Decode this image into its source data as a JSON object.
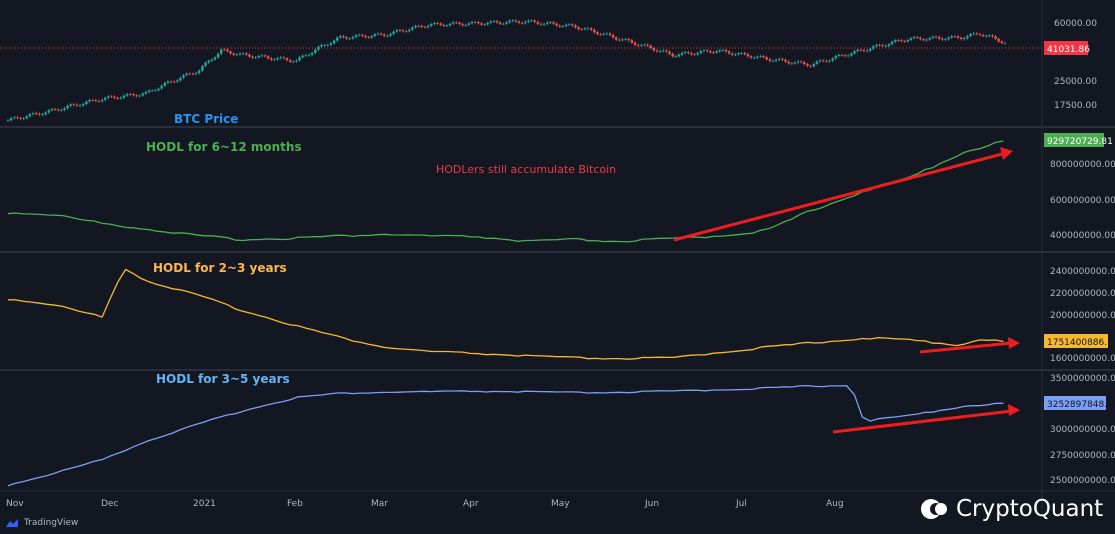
{
  "brand": {
    "name": "CryptoQuant",
    "platform": "TradingView"
  },
  "time_axis": [
    "Nov",
    "Dec",
    "2021",
    "Feb",
    "Mar",
    "Apr",
    "May",
    "Jun",
    "Jul",
    "Aug"
  ],
  "chart_data": [
    {
      "type": "candlestick",
      "title": "BTC Price",
      "title_color": "#2196f3",
      "y_ticks": [
        "60000.00",
        "41031.86",
        "25000.00",
        "17500.00"
      ],
      "last_value_label": "41031.86",
      "last_value": 41031.86,
      "scale": "log",
      "x": [
        "2020-11-01",
        "2020-11-15",
        "2020-12-01",
        "2020-12-15",
        "2021-01-01",
        "2021-01-08",
        "2021-01-15",
        "2021-02-01",
        "2021-02-15",
        "2021-03-01",
        "2021-03-15",
        "2021-04-01",
        "2021-04-15",
        "2021-05-01",
        "2021-05-15",
        "2021-06-01",
        "2021-06-15",
        "2021-07-01",
        "2021-07-15",
        "2021-08-01",
        "2021-08-15",
        "2021-09-01",
        "2021-09-07",
        "2021-09-15"
      ],
      "values": [
        13700,
        15800,
        18900,
        20500,
        29000,
        39000,
        36500,
        33500,
        47500,
        49500,
        57500,
        59000,
        60500,
        56000,
        46500,
        36500,
        39000,
        34500,
        31500,
        39500,
        46500,
        47500,
        50500,
        44000
      ]
    },
    {
      "type": "line",
      "title": "HODL for 6~12 months",
      "title_color": "#4caf50",
      "color": "#4caf50",
      "annotation": "HODLers still accumulate Bitcoin",
      "annotation_color": "#f23645",
      "y_ticks": [
        "929720729.81",
        "800000000.00",
        "600000000.00",
        "400000000.00"
      ],
      "last_value_label": "929720729.81",
      "last_value": 929720729.81,
      "x": [
        "2020-11-01",
        "2020-11-15",
        "2020-12-01",
        "2020-12-15",
        "2021-01-01",
        "2021-01-15",
        "2021-02-01",
        "2021-02-15",
        "2021-03-01",
        "2021-03-15",
        "2021-04-01",
        "2021-04-15",
        "2021-05-01",
        "2021-05-15",
        "2021-06-01",
        "2021-06-15",
        "2021-07-01",
        "2021-07-15",
        "2021-08-01",
        "2021-08-15",
        "2021-09-01",
        "2021-09-15"
      ],
      "values": [
        530000000,
        520000000,
        470000000,
        440000000,
        400000000,
        380000000,
        390000000,
        400000000,
        410000000,
        400000000,
        395000000,
        370000000,
        380000000,
        370000000,
        385000000,
        400000000,
        430000000,
        540000000,
        650000000,
        720000000,
        860000000,
        929720729.81
      ]
    },
    {
      "type": "line",
      "title": "HODL for 2~3 years",
      "title_color": "#ffb74d",
      "color": "#f5b82e",
      "y_ticks": [
        "2400000000.00",
        "2200000000.00",
        "2000000000.00",
        "1751400886.12",
        "1600000000.00"
      ],
      "last_value_label": "1751400886.12",
      "last_value": 1751400886.12,
      "x": [
        "2020-11-01",
        "2020-11-15",
        "2020-12-01",
        "2020-12-08",
        "2020-12-15",
        "2021-01-01",
        "2021-01-15",
        "2021-02-01",
        "2021-02-15",
        "2021-03-01",
        "2021-03-15",
        "2021-04-01",
        "2021-04-15",
        "2021-05-01",
        "2021-05-15",
        "2021-06-01",
        "2021-06-15",
        "2021-07-01",
        "2021-07-15",
        "2021-08-01",
        "2021-08-15",
        "2021-09-01",
        "2021-09-07",
        "2021-09-15"
      ],
      "values": [
        2150000000,
        2100000000,
        1980000000,
        2440000000,
        2320000000,
        2180000000,
        2040000000,
        1900000000,
        1790000000,
        1700000000,
        1660000000,
        1640000000,
        1620000000,
        1600000000,
        1595000000,
        1600000000,
        1650000000,
        1700000000,
        1740000000,
        1785000000,
        1770000000,
        1720000000,
        1775000000,
        1751400886.12
      ]
    },
    {
      "type": "line",
      "title": "HODL for 3~5 years",
      "title_color": "#64b5f6",
      "color": "#7b9ff2",
      "y_ticks": [
        "3500000000.00",
        "3252897848.11",
        "3000000000.00",
        "2750000000.00",
        "2500000000.00"
      ],
      "last_value_label": "3252897848.11",
      "last_value": 3252897848.11,
      "x": [
        "2020-11-01",
        "2020-11-15",
        "2020-12-01",
        "2020-12-15",
        "2021-01-01",
        "2021-01-15",
        "2021-02-01",
        "2021-02-15",
        "2021-03-01",
        "2021-03-15",
        "2021-04-01",
        "2021-04-15",
        "2021-05-01",
        "2021-05-15",
        "2021-06-01",
        "2021-06-15",
        "2021-07-01",
        "2021-07-15",
        "2021-07-28",
        "2021-08-01",
        "2021-08-15",
        "2021-09-01",
        "2021-09-15"
      ],
      "values": [
        2450000000,
        2560000000,
        2700000000,
        2880000000,
        3050000000,
        3180000000,
        3310000000,
        3350000000,
        3360000000,
        3365000000,
        3370000000,
        3365000000,
        3355000000,
        3360000000,
        3370000000,
        3385000000,
        3400000000,
        3420000000,
        3430000000,
        3075000000,
        3130000000,
        3220000000,
        3252897848.11
      ]
    }
  ]
}
